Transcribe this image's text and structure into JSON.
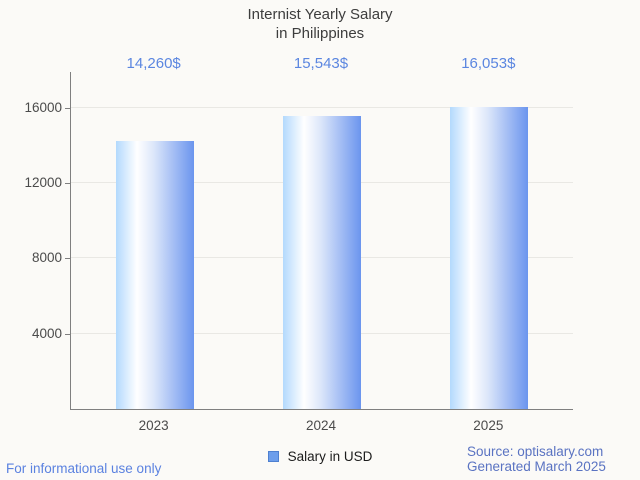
{
  "chart_data": {
    "type": "bar",
    "title": "Internist Yearly Salary in Philippines",
    "title_lines": [
      "Internist Yearly Salary",
      "in Philippines"
    ],
    "categories": [
      "2023",
      "2024",
      "2025"
    ],
    "values": [
      14260,
      15543,
      16053
    ],
    "value_labels": [
      "14,260$",
      "15,543$",
      "16,053$"
    ],
    "series_name": "Salary in USD",
    "xlabel": "",
    "ylabel": "",
    "ylim": [
      0,
      17900
    ],
    "yticks": [
      4000,
      8000,
      12000,
      16000
    ],
    "grid": true,
    "legend_position": "bottom"
  },
  "legend": {
    "label": "Salary in USD"
  },
  "footer": {
    "disclaimer": "For informational use only",
    "source": "Source: optisalary.com",
    "generated": "Generated March 2025"
  },
  "colors": {
    "background": "#fbfaf7",
    "title": "#3d3d3d",
    "axis": "#7f7f7f",
    "grid": "#e9e8e4",
    "tick_label": "#4b4b4b",
    "value_label": "#5b86e0",
    "bar_gradient_light": "#b3d9fd",
    "bar_gradient_white": "#ffffff",
    "bar_gradient_dark": "#6b95ee",
    "legend_swatch": "#6d9eeb",
    "legend_swatch_border": "#4e80d0",
    "disclaimer_text": "#5b82e0",
    "source_text": "#5a73c2"
  }
}
